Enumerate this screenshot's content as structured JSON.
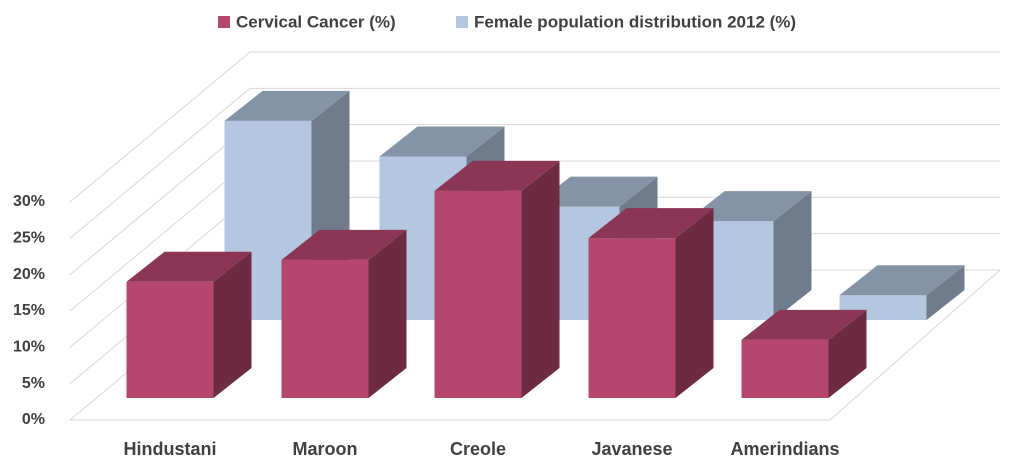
{
  "chart_data": {
    "type": "bar3d",
    "categories": [
      "Hindustani",
      "Maroon",
      "Creole",
      "Javanese",
      "Amerindians"
    ],
    "series": [
      {
        "name": "Cervical Cancer (%)",
        "color": "#b5476e",
        "values": [
          16,
          19,
          28.5,
          22,
          8
        ]
      },
      {
        "name": "Female population distribution 2012 (%)",
        "color": "#b4c6e0",
        "values": [
          27.4,
          22.5,
          15.6,
          13.6,
          3.4
        ]
      }
    ],
    "ylim": [
      0,
      30
    ],
    "yticks": [
      {
        "value": 0,
        "label": "0%"
      },
      {
        "value": 5,
        "label": "5%"
      },
      {
        "value": 10,
        "label": "10%"
      },
      {
        "value": 15,
        "label": "15%"
      },
      {
        "value": 20,
        "label": "20%"
      },
      {
        "value": 25,
        "label": "25%"
      },
      {
        "value": 30,
        "label": "30%"
      }
    ],
    "grid": true,
    "legend": "top"
  }
}
